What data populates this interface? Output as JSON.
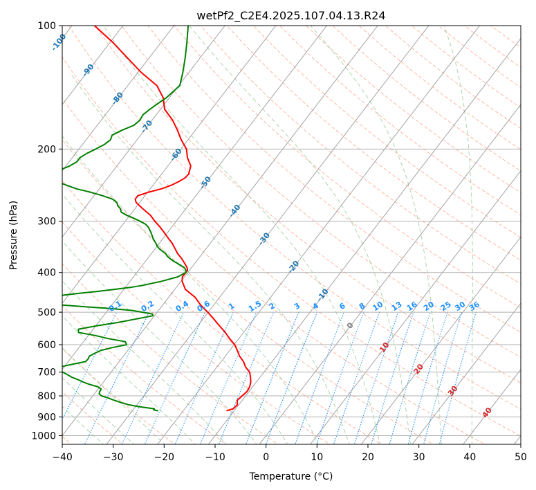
{
  "chart_data": {
    "type": "line",
    "chart_kind": "skew-t log-p diagram",
    "title": "wetPf2_C2E4.2025.107.04.13.R24",
    "xlabel": "Temperature (°C)",
    "ylabel": "Pressure (hPa)",
    "xlim": [
      -40,
      50
    ],
    "ylim": [
      1050,
      100
    ],
    "y_scale": "log",
    "grid": true,
    "x_ticks": [
      -40,
      -30,
      -20,
      -10,
      0,
      10,
      20,
      30,
      40,
      50
    ],
    "y_ticks": [
      100,
      200,
      300,
      400,
      500,
      600,
      700,
      800,
      900,
      1000
    ],
    "colors": {
      "temperature": "#ff0000",
      "dewpoint": "#008000",
      "isotherm": "#1f77b4",
      "dry_adiabat": "#ff9e80",
      "moist_adiabat": "#7fbf7f",
      "mixing_ratio": "#1e90ff",
      "isotherm_label_warm": "#d62728",
      "isotherm_label_zero": "#808080"
    },
    "isotherm_labels": [
      {
        "value": -100,
        "text": "-100"
      },
      {
        "value": -90,
        "text": "-90"
      },
      {
        "value": -80,
        "text": "-80"
      },
      {
        "value": -70,
        "text": "-70"
      },
      {
        "value": -60,
        "text": "-60"
      },
      {
        "value": -50,
        "text": "-50"
      },
      {
        "value": -40,
        "text": "-40"
      },
      {
        "value": -30,
        "text": "-30"
      },
      {
        "value": -20,
        "text": "-20"
      },
      {
        "value": -10,
        "text": "-10"
      },
      {
        "value": 0,
        "text": "0"
      },
      {
        "value": 10,
        "text": "10"
      },
      {
        "value": 20,
        "text": "20"
      },
      {
        "value": 30,
        "text": "30"
      },
      {
        "value": 40,
        "text": "40"
      }
    ],
    "mixing_ratio_labels": [
      "0.1",
      "0.2",
      "0.4",
      "0.6",
      "1",
      "1.5",
      "2",
      "3",
      "4",
      "6",
      "8",
      "10",
      "13",
      "16",
      "20",
      "25",
      "30",
      "36"
    ],
    "series": [
      {
        "name": "temperature",
        "color": "#ff0000",
        "p": [
          870,
          860,
          840,
          820,
          800,
          780,
          760,
          740,
          720,
          700,
          680,
          660,
          640,
          620,
          600,
          580,
          560,
          540,
          520,
          500,
          480,
          460,
          440,
          420,
          410,
          400,
          395,
          390,
          380,
          370,
          360,
          350,
          340,
          330,
          320,
          310,
          300,
          290,
          280,
          270,
          265,
          260,
          255,
          250,
          245,
          240,
          235,
          230,
          220,
          210,
          200,
          190,
          180,
          170,
          160,
          150,
          140,
          130,
          120,
          110,
          100
        ],
        "t": [
          -11.5,
          -10.5,
          -10.3,
          -11.0,
          -10.7,
          -10.4,
          -10.6,
          -11.1,
          -11.9,
          -12.8,
          -14.4,
          -15.6,
          -17.2,
          -18.5,
          -19.9,
          -21.8,
          -23.6,
          -25.7,
          -27.8,
          -30.1,
          -32.6,
          -34.8,
          -37.9,
          -39.8,
          -40.4,
          -40.4,
          -40.4,
          -40.8,
          -42.0,
          -43.3,
          -44.8,
          -46.1,
          -47.4,
          -49.0,
          -50.6,
          -52.3,
          -54.2,
          -56.0,
          -58.4,
          -60.7,
          -61.4,
          -61.4,
          -59.9,
          -57.8,
          -56.4,
          -55.5,
          -54.8,
          -54.7,
          -55.5,
          -57.4,
          -58.9,
          -61.3,
          -63.5,
          -66.0,
          -69.2,
          -71.2,
          -74.3,
          -79.4,
          -84.2,
          -89.4,
          -95.6
        ]
      },
      {
        "name": "dewpoint",
        "color": "#008000",
        "p": [
          870,
          865,
          860,
          850,
          840,
          830,
          820,
          810,
          800,
          790,
          780,
          770,
          760,
          750,
          740,
          730,
          720,
          710,
          700,
          690,
          680,
          670,
          660,
          650,
          640,
          630,
          620,
          610,
          600,
          590,
          580,
          570,
          560,
          550,
          540,
          530,
          520,
          510,
          505,
          500,
          495,
          490,
          485,
          480,
          475,
          470,
          465,
          460,
          455,
          450,
          445,
          440,
          435,
          430,
          420,
          410,
          400,
          395,
          390,
          385,
          380,
          375,
          370,
          365,
          360,
          355,
          350,
          345,
          340,
          335,
          330,
          325,
          320,
          315,
          310,
          305,
          300,
          295,
          290,
          285,
          280,
          275,
          270,
          265,
          260,
          255,
          250,
          245,
          240,
          235,
          232,
          230,
          228,
          225,
          220,
          215,
          210,
          205,
          200,
          195,
          190,
          185,
          180,
          175,
          170,
          165,
          160,
          155,
          150,
          140,
          130,
          120,
          110,
          100
        ],
        "t": [
          -24.9,
          -26.0,
          -26.0,
          -29.3,
          -31.8,
          -33.5,
          -35.1,
          -36.6,
          -38.3,
          -39.1,
          -39.3,
          -39.4,
          -40.4,
          -42.4,
          -44.0,
          -45.4,
          -47.0,
          -48.2,
          -49.5,
          -50.6,
          -50.8,
          -48.8,
          -46.6,
          -46.5,
          -46.7,
          -46.1,
          -45.3,
          -43.5,
          -41.1,
          -41.8,
          -45.6,
          -48.6,
          -52.4,
          -52.9,
          -49.9,
          -46.3,
          -43.3,
          -40.3,
          -40.7,
          -42.9,
          -45.3,
          -49.5,
          -54.9,
          -60.0,
          -64.9,
          -66.2,
          -65.2,
          -64.0,
          -61.3,
          -58.4,
          -54.9,
          -52.0,
          -49.0,
          -46.9,
          -43.7,
          -41.3,
          -40.4,
          -40.7,
          -41.3,
          -42.3,
          -43.4,
          -44.6,
          -45.6,
          -46.5,
          -47.2,
          -48.2,
          -49.2,
          -50.0,
          -50.6,
          -51.3,
          -52.0,
          -52.6,
          -53.2,
          -53.9,
          -54.6,
          -55.6,
          -57.1,
          -58.8,
          -60.7,
          -62.2,
          -62.8,
          -63.8,
          -64.5,
          -65.8,
          -68.3,
          -71.1,
          -74.5,
          -77.0,
          -79.5,
          -82.2,
          -83.7,
          -84.3,
          -83.1,
          -80.6,
          -79.3,
          -78.5,
          -78.5,
          -77.8,
          -76.7,
          -75.7,
          -75.2,
          -75.6,
          -74.4,
          -72.8,
          -72.4,
          -72.6,
          -72.1,
          -71.4,
          -70.6,
          -69.8,
          -71.2,
          -72.9,
          -74.9,
          -77.2
        ]
      }
    ]
  }
}
